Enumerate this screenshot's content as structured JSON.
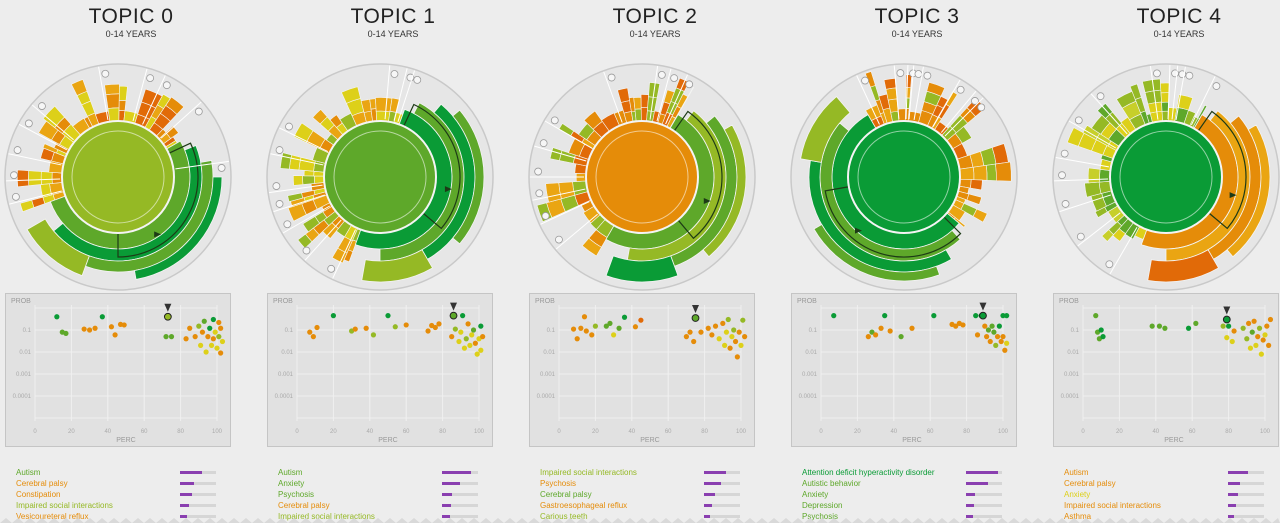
{
  "colors": {
    "green_dark": "#0a9b36",
    "green": "#5ea82a",
    "lime": "#95b925",
    "yellow": "#ddd019",
    "orange": "#e58c09",
    "orange_dark": "#e16a08",
    "accent_bar": "#8a3fb0"
  },
  "scatter_axes": {
    "ylabel": "PROB",
    "xlabel": "PERC",
    "xticks": [
      "0",
      "20",
      "40",
      "60",
      "80",
      "100"
    ],
    "yticks": [
      "0.1",
      "0.01",
      "0.001",
      "0.0001"
    ]
  },
  "topics": [
    {
      "title": "TOPIC 0",
      "subtitle": "0-14 YEARS",
      "center_color": "#95b925",
      "legend": [
        {
          "label": "Autism",
          "color": "#5ea82a",
          "value": 0.62
        },
        {
          "label": "Cerebral palsy",
          "color": "#e58c09",
          "value": 0.4
        },
        {
          "label": "Constipation",
          "color": "#e58c09",
          "value": 0.33
        },
        {
          "label": "Impaired social interactions",
          "color": "#95b925",
          "value": 0.25
        },
        {
          "label": "Vesicoureteral reflux",
          "color": "#e58c09",
          "value": 0.2
        }
      ]
    },
    {
      "title": "TOPIC 1",
      "subtitle": "0-14 YEARS",
      "center_color": "#5ea82a",
      "legend": [
        {
          "label": "Autism",
          "color": "#5ea82a",
          "value": 0.8
        },
        {
          "label": "Anxiety",
          "color": "#5ea82a",
          "value": 0.5
        },
        {
          "label": "Psychosis",
          "color": "#5ea82a",
          "value": 0.28
        },
        {
          "label": "Cerebral palsy",
          "color": "#e58c09",
          "value": 0.26
        },
        {
          "label": "Impaired social interactions",
          "color": "#95b925",
          "value": 0.22
        }
      ]
    },
    {
      "title": "TOPIC 2",
      "subtitle": "0-14 YEARS",
      "center_color": "#e58c09",
      "legend": [
        {
          "label": "Impaired social interactions",
          "color": "#95b925",
          "value": 0.62
        },
        {
          "label": "Psychosis",
          "color": "#e58c09",
          "value": 0.46
        },
        {
          "label": "Cerebral palsy",
          "color": "#5ea82a",
          "value": 0.3
        },
        {
          "label": "Gastroesophageal reflux",
          "color": "#e58c09",
          "value": 0.22
        },
        {
          "label": "Carious teeth",
          "color": "#95b925",
          "value": 0.18
        }
      ]
    },
    {
      "title": "TOPIC 3",
      "subtitle": "0-14 YEARS",
      "center_color": "#0a9b36",
      "legend": [
        {
          "label": "Attention deficit hyperactivity disorder",
          "color": "#0a9b36",
          "value": 0.9
        },
        {
          "label": "Autistic behavior",
          "color": "#5ea82a",
          "value": 0.6
        },
        {
          "label": "Anxiety",
          "color": "#5ea82a",
          "value": 0.25
        },
        {
          "label": "Depression",
          "color": "#5ea82a",
          "value": 0.22
        },
        {
          "label": "Psychosis",
          "color": "#5ea82a",
          "value": 0.2
        }
      ]
    },
    {
      "title": "TOPIC 4",
      "subtitle": "0-14 YEARS",
      "center_color": "#0a9b36",
      "legend": [
        {
          "label": "Autism",
          "color": "#e58c09",
          "value": 0.55
        },
        {
          "label": "Cerebral palsy",
          "color": "#e58c09",
          "value": 0.33
        },
        {
          "label": "Anxiety",
          "color": "#ddd019",
          "value": 0.28
        },
        {
          "label": "Impaired social interactions",
          "color": "#e58c09",
          "value": 0.22
        },
        {
          "label": "Asthma",
          "color": "#e58c09",
          "value": 0.18
        }
      ]
    }
  ],
  "chart_data": [
    {
      "type": "scatter",
      "title": "TOPIC 0",
      "xlabel": "PERC",
      "ylabel": "PROB",
      "yscale": "log",
      "xlim": [
        0,
        100
      ],
      "ylim": [
        1e-05,
        1
      ],
      "highlight": {
        "x": 73,
        "y": 0.4
      },
      "points": [
        [
          12,
          0.4,
          "#0a9b36"
        ],
        [
          15,
          0.08,
          "#5ea82a"
        ],
        [
          17,
          0.07,
          "#5ea82a"
        ],
        [
          27,
          0.11,
          "#e58c09"
        ],
        [
          30,
          0.1,
          "#e58c09"
        ],
        [
          33,
          0.12,
          "#e58c09"
        ],
        [
          37,
          0.4,
          "#0a9b36"
        ],
        [
          42,
          0.14,
          "#e58c09"
        ],
        [
          44,
          0.06,
          "#e58c09"
        ],
        [
          47,
          0.18,
          "#e58c09"
        ],
        [
          49,
          0.17,
          "#e58c09"
        ],
        [
          72,
          0.05,
          "#5ea82a"
        ],
        [
          75,
          0.05,
          "#5ea82a"
        ],
        [
          83,
          0.04,
          "#e58c09"
        ],
        [
          85,
          0.12,
          "#e58c09"
        ],
        [
          88,
          0.05,
          "#e58c09"
        ],
        [
          90,
          0.15,
          "#95b925"
        ],
        [
          91,
          0.02,
          "#ddd019"
        ],
        [
          92,
          0.08,
          "#e58c09"
        ],
        [
          93,
          0.25,
          "#5ea82a"
        ],
        [
          94,
          0.01,
          "#ddd019"
        ],
        [
          95,
          0.05,
          "#e58c09"
        ],
        [
          96,
          0.12,
          "#0a9b36"
        ],
        [
          97,
          0.02,
          "#ddd019"
        ],
        [
          98,
          0.3,
          "#0a9b36"
        ],
        [
          98,
          0.04,
          "#e58c09"
        ],
        [
          99,
          0.08,
          "#ddd019"
        ],
        [
          100,
          0.015,
          "#ddd019"
        ],
        [
          101,
          0.22,
          "#e58c09"
        ],
        [
          101,
          0.05,
          "#95b925"
        ],
        [
          102,
          0.009,
          "#e58c09"
        ],
        [
          102,
          0.12,
          "#e58c09"
        ],
        [
          103,
          0.03,
          "#ddd019"
        ]
      ]
    },
    {
      "type": "scatter",
      "title": "TOPIC 1",
      "xlabel": "PERC",
      "ylabel": "PROB",
      "yscale": "log",
      "xlim": [
        0,
        100
      ],
      "ylim": [
        1e-05,
        1
      ],
      "highlight": {
        "x": 86,
        "y": 0.45
      },
      "points": [
        [
          7,
          0.08,
          "#e58c09"
        ],
        [
          9,
          0.05,
          "#e58c09"
        ],
        [
          11,
          0.13,
          "#e58c09"
        ],
        [
          20,
          0.45,
          "#0a9b36"
        ],
        [
          30,
          0.09,
          "#95b925"
        ],
        [
          32,
          0.11,
          "#e58c09"
        ],
        [
          38,
          0.12,
          "#e58c09"
        ],
        [
          42,
          0.06,
          "#95b925"
        ],
        [
          50,
          0.45,
          "#0a9b36"
        ],
        [
          54,
          0.14,
          "#95b925"
        ],
        [
          60,
          0.17,
          "#e58c09"
        ],
        [
          72,
          0.09,
          "#e58c09"
        ],
        [
          74,
          0.16,
          "#e58c09"
        ],
        [
          76,
          0.13,
          "#e58c09"
        ],
        [
          78,
          0.19,
          "#e58c09"
        ],
        [
          85,
          0.05,
          "#e58c09"
        ],
        [
          87,
          0.11,
          "#95b925"
        ],
        [
          89,
          0.03,
          "#ddd019"
        ],
        [
          90,
          0.08,
          "#ddd019"
        ],
        [
          91,
          0.45,
          "#0a9b36"
        ],
        [
          92,
          0.015,
          "#ddd019"
        ],
        [
          93,
          0.04,
          "#95b925"
        ],
        [
          94,
          0.19,
          "#e58c09"
        ],
        [
          95,
          0.02,
          "#ddd019"
        ],
        [
          96,
          0.06,
          "#ddd019"
        ],
        [
          97,
          0.1,
          "#5ea82a"
        ],
        [
          98,
          0.025,
          "#e58c09"
        ],
        [
          99,
          0.008,
          "#ddd019"
        ],
        [
          100,
          0.04,
          "#ddd019"
        ],
        [
          101,
          0.15,
          "#0a9b36"
        ],
        [
          101,
          0.012,
          "#ddd019"
        ],
        [
          102,
          0.05,
          "#e58c09"
        ]
      ]
    },
    {
      "type": "scatter",
      "title": "TOPIC 2",
      "xlabel": "PERC",
      "ylabel": "PROB",
      "yscale": "log",
      "xlim": [
        0,
        100
      ],
      "ylim": [
        1e-05,
        1
      ],
      "highlight": {
        "x": 75,
        "y": 0.35
      },
      "points": [
        [
          8,
          0.11,
          "#e58c09"
        ],
        [
          10,
          0.04,
          "#e58c09"
        ],
        [
          12,
          0.12,
          "#e58c09"
        ],
        [
          14,
          0.4,
          "#e58c09"
        ],
        [
          15,
          0.09,
          "#e58c09"
        ],
        [
          18,
          0.06,
          "#e58c09"
        ],
        [
          20,
          0.15,
          "#95b925"
        ],
        [
          26,
          0.15,
          "#5ea82a"
        ],
        [
          28,
          0.2,
          "#5ea82a"
        ],
        [
          30,
          0.06,
          "#ddd019"
        ],
        [
          33,
          0.12,
          "#5ea82a"
        ],
        [
          36,
          0.38,
          "#0a9b36"
        ],
        [
          42,
          0.14,
          "#e58c09"
        ],
        [
          45,
          0.28,
          "#e16a08"
        ],
        [
          70,
          0.05,
          "#e58c09"
        ],
        [
          72,
          0.08,
          "#e58c09"
        ],
        [
          74,
          0.03,
          "#e58c09"
        ],
        [
          78,
          0.08,
          "#e58c09"
        ],
        [
          82,
          0.12,
          "#e58c09"
        ],
        [
          84,
          0.06,
          "#e58c09"
        ],
        [
          86,
          0.15,
          "#e58c09"
        ],
        [
          88,
          0.04,
          "#ddd019"
        ],
        [
          90,
          0.2,
          "#e58c09"
        ],
        [
          91,
          0.02,
          "#ddd019"
        ],
        [
          92,
          0.08,
          "#ddd019"
        ],
        [
          93,
          0.3,
          "#95b925"
        ],
        [
          94,
          0.015,
          "#e58c09"
        ],
        [
          95,
          0.05,
          "#ddd019"
        ],
        [
          96,
          0.1,
          "#95b925"
        ],
        [
          97,
          0.03,
          "#e58c09"
        ],
        [
          98,
          0.006,
          "#e58c09"
        ],
        [
          99,
          0.08,
          "#e58c09"
        ],
        [
          100,
          0.02,
          "#ddd019"
        ],
        [
          101,
          0.28,
          "#95b925"
        ],
        [
          102,
          0.05,
          "#e58c09"
        ]
      ]
    },
    {
      "type": "scatter",
      "title": "TOPIC 3",
      "xlabel": "PERC",
      "ylabel": "PROB",
      "yscale": "log",
      "xlim": [
        0,
        100
      ],
      "ylim": [
        1e-05,
        1
      ],
      "highlight": {
        "x": 89,
        "y": 0.45
      },
      "points": [
        [
          7,
          0.45,
          "#0a9b36"
        ],
        [
          26,
          0.05,
          "#e58c09"
        ],
        [
          28,
          0.08,
          "#5ea82a"
        ],
        [
          30,
          0.06,
          "#e58c09"
        ],
        [
          33,
          0.12,
          "#e58c09"
        ],
        [
          35,
          0.45,
          "#0a9b36"
        ],
        [
          38,
          0.09,
          "#e58c09"
        ],
        [
          44,
          0.05,
          "#5ea82a"
        ],
        [
          50,
          0.12,
          "#e58c09"
        ],
        [
          62,
          0.45,
          "#0a9b36"
        ],
        [
          72,
          0.18,
          "#e58c09"
        ],
        [
          74,
          0.15,
          "#e58c09"
        ],
        [
          76,
          0.2,
          "#e58c09"
        ],
        [
          78,
          0.17,
          "#e58c09"
        ],
        [
          85,
          0.45,
          "#0a9b36"
        ],
        [
          86,
          0.06,
          "#e58c09"
        ],
        [
          88,
          0.45,
          "#0a9b36"
        ],
        [
          90,
          0.15,
          "#e58c09"
        ],
        [
          91,
          0.05,
          "#e58c09"
        ],
        [
          92,
          0.1,
          "#5ea82a"
        ],
        [
          93,
          0.03,
          "#e58c09"
        ],
        [
          94,
          0.15,
          "#5ea82a"
        ],
        [
          95,
          0.08,
          "#5ea82a"
        ],
        [
          96,
          0.02,
          "#95b925"
        ],
        [
          97,
          0.05,
          "#e58c09"
        ],
        [
          98,
          0.15,
          "#0a9b36"
        ],
        [
          99,
          0.03,
          "#e58c09"
        ],
        [
          100,
          0.45,
          "#0a9b36"
        ],
        [
          100,
          0.05,
          "#e58c09"
        ],
        [
          101,
          0.012,
          "#e58c09"
        ],
        [
          102,
          0.45,
          "#0a9b36"
        ],
        [
          102,
          0.025,
          "#ddd019"
        ]
      ]
    },
    {
      "type": "scatter",
      "title": "TOPIC 4",
      "xlabel": "PERC",
      "ylabel": "PROB",
      "yscale": "log",
      "xlim": [
        0,
        100
      ],
      "ylim": [
        1e-05,
        1
      ],
      "highlight": {
        "x": 79,
        "y": 0.3
      },
      "points": [
        [
          7,
          0.45,
          "#5ea82a"
        ],
        [
          8,
          0.08,
          "#5ea82a"
        ],
        [
          9,
          0.04,
          "#5ea82a"
        ],
        [
          10,
          0.1,
          "#0a9b36"
        ],
        [
          11,
          0.05,
          "#0a9b36"
        ],
        [
          38,
          0.15,
          "#5ea82a"
        ],
        [
          42,
          0.15,
          "#5ea82a"
        ],
        [
          45,
          0.12,
          "#5ea82a"
        ],
        [
          58,
          0.12,
          "#0a9b36"
        ],
        [
          62,
          0.2,
          "#5ea82a"
        ],
        [
          77,
          0.15,
          "#95b925"
        ],
        [
          79,
          0.045,
          "#ddd019"
        ],
        [
          80,
          0.15,
          "#0a9b36"
        ],
        [
          82,
          0.03,
          "#ddd019"
        ],
        [
          83,
          0.09,
          "#e58c09"
        ],
        [
          88,
          0.12,
          "#95b925"
        ],
        [
          90,
          0.04,
          "#95b925"
        ],
        [
          91,
          0.2,
          "#e58c09"
        ],
        [
          92,
          0.015,
          "#ddd019"
        ],
        [
          93,
          0.08,
          "#5ea82a"
        ],
        [
          94,
          0.25,
          "#e58c09"
        ],
        [
          95,
          0.02,
          "#ddd019"
        ],
        [
          96,
          0.05,
          "#e58c09"
        ],
        [
          97,
          0.12,
          "#95b925"
        ],
        [
          98,
          0.008,
          "#ddd019"
        ],
        [
          99,
          0.035,
          "#e58c09"
        ],
        [
          100,
          0.06,
          "#ddd019"
        ],
        [
          101,
          0.15,
          "#e58c09"
        ],
        [
          102,
          0.02,
          "#e58c09"
        ],
        [
          103,
          0.3,
          "#e58c09"
        ]
      ]
    }
  ]
}
